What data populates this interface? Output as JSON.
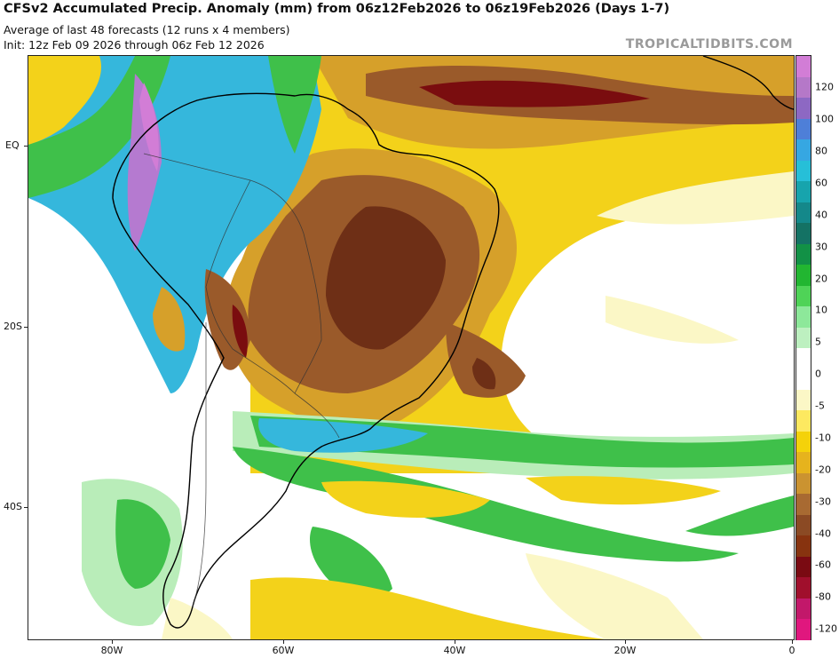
{
  "header": {
    "title": "CFSv2 Accumulated Precip. Anomaly (mm) from 06z12Feb2026 to 06z19Feb2026 (Days 1-7)",
    "subtitle1": "Average of last 48 forecasts (12 runs x 4 members)",
    "subtitle2": "Init: 12z Feb 09 2026 through 06z Feb 12 2026",
    "credit": "TROPICALTIDBITS.COM"
  },
  "map": {
    "lat_labels": [
      {
        "label": "EQ",
        "lat": 0
      },
      {
        "label": "20S",
        "lat": -20
      },
      {
        "label": "40S",
        "lat": -40
      }
    ],
    "lon_labels": [
      {
        "label": "80W",
        "lon": -80
      },
      {
        "label": "60W",
        "lon": -60
      },
      {
        "label": "40W",
        "lon": -40
      },
      {
        "label": "20W",
        "lon": -20
      },
      {
        "label": "0",
        "lon": 0
      }
    ]
  },
  "colorbar": {
    "labels": [
      "120",
      "100",
      "80",
      "60",
      "40",
      "30",
      "20",
      "10",
      "5",
      "0",
      "-5",
      "-10",
      "-20",
      "-30",
      "-40",
      "-60",
      "-80",
      "-120"
    ],
    "colors": [
      "#e0177e",
      "#c2186a",
      "#a00f2c",
      "#7a0a12",
      "#87330f",
      "#8b4a24",
      "#a86a32",
      "#cb9330",
      "#e6b31d",
      "#f4d20a",
      "#fde960",
      "#fbf7c6",
      "#ffffff",
      "#ffffff",
      "#bdf0c0",
      "#8de89a",
      "#4fd357",
      "#22b631",
      "#129146",
      "#147264",
      "#14888a",
      "#17a4ad",
      "#26bfd8",
      "#36a7e2",
      "#4e7fd8",
      "#8d68c3",
      "#b578c8",
      "#d27dd6"
    ]
  },
  "legend_colors": {
    "purple": "#b57ad0",
    "blue": "#35b7dc",
    "green": "#3fc04a",
    "light_green": "#b9edb9",
    "yellow": "#f3d21a",
    "orange": "#d6a02a",
    "brown": "#9a5a2a",
    "dark_brown": "#6e2f16",
    "maroon": "#7a0d0f"
  }
}
